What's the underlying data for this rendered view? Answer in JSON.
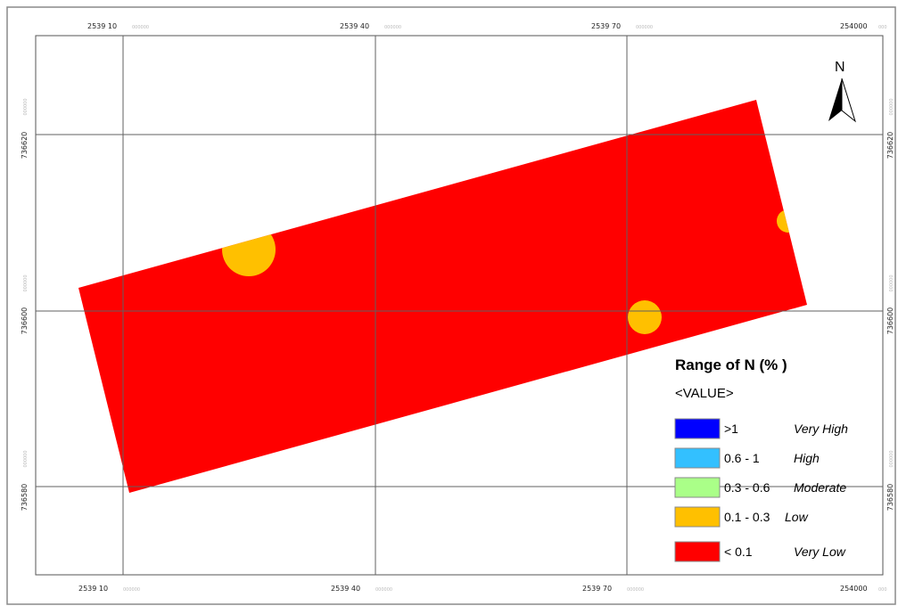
{
  "map": {
    "grid_x": [
      {
        "label": "2539 10",
        "faint": "000000"
      },
      {
        "label": "2539 40",
        "faint": "000000"
      },
      {
        "label": "2539 70",
        "faint": "000000"
      },
      {
        "label": "254000",
        "faint": "000"
      }
    ],
    "grid_y": [
      {
        "label": "736620",
        "faint": "000000"
      },
      {
        "label": "736600",
        "faint": "000000"
      },
      {
        "label": "736580",
        "faint": "000000"
      }
    ],
    "field_color": "#ff0000",
    "spot_color": "#ffc000",
    "north_label": "N"
  },
  "legend": {
    "title": "Range of N (% )",
    "subtitle": "<VALUE>",
    "items": [
      {
        "range": ">1",
        "class": "Very High",
        "color": "#0000ff"
      },
      {
        "range": "0.6 - 1",
        "class": "High",
        "color": "#33c0ff"
      },
      {
        "range": "0.3 - 0.6",
        "class": "Moderate",
        "color": "#aaff88"
      },
      {
        "range": "0.1 - 0.3",
        "class": "Low",
        "color": "#ffc000"
      },
      {
        "range": "< 0.1",
        "class": "Very Low",
        "color": "#ff0000"
      }
    ]
  }
}
